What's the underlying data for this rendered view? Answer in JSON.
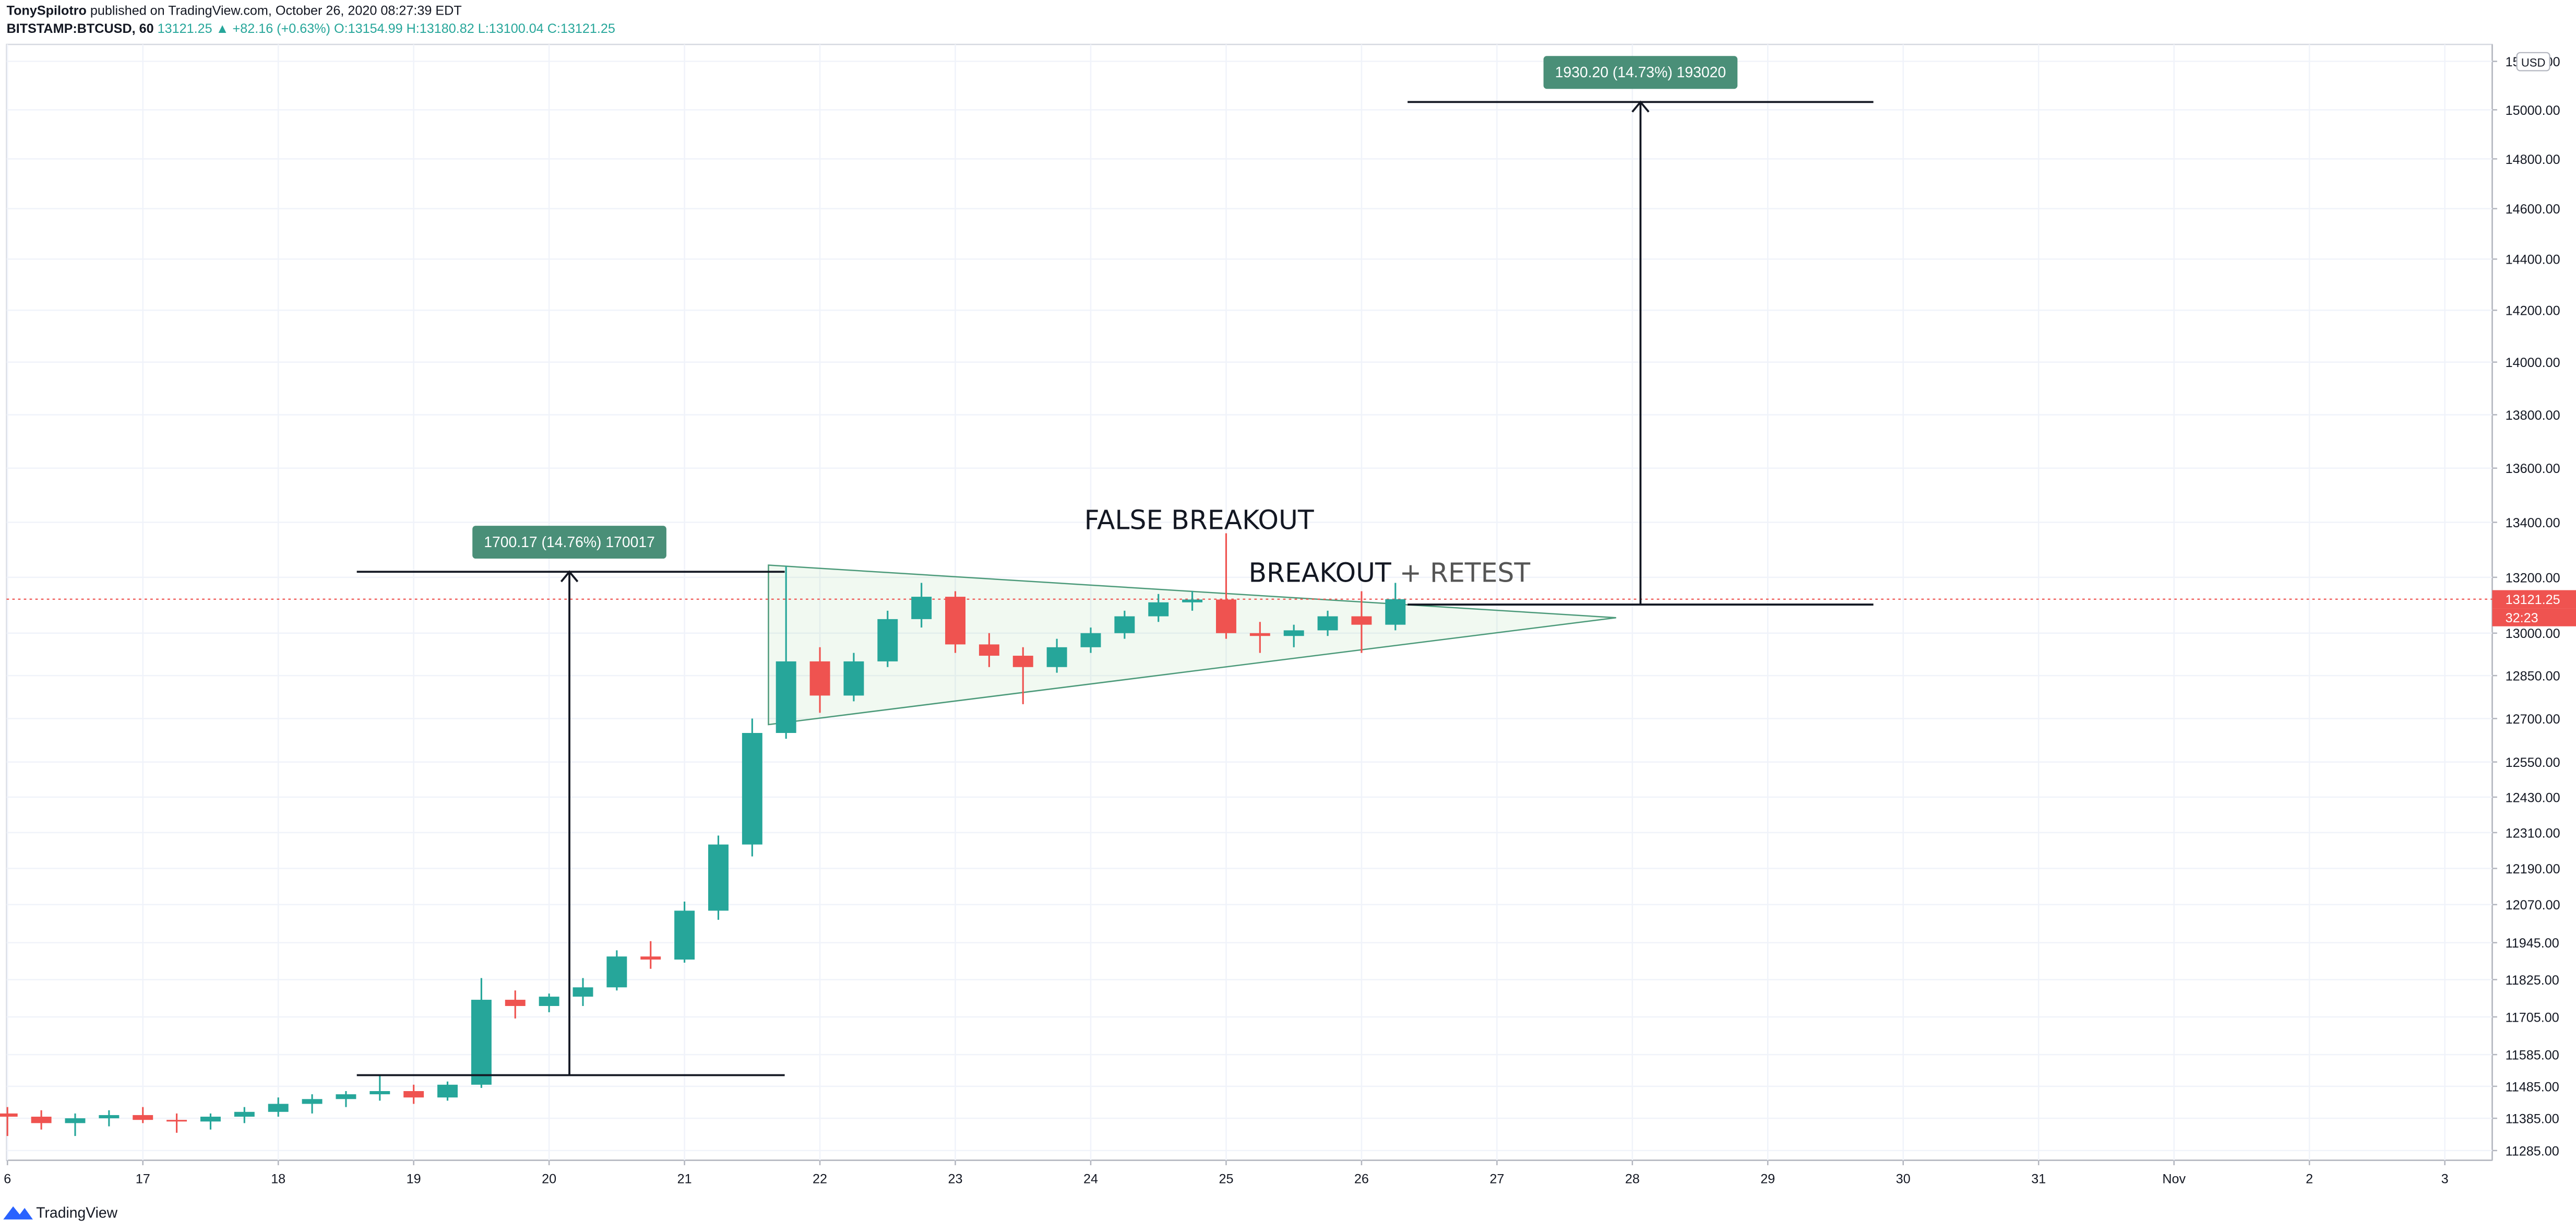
{
  "header": {
    "author": "TonySpilotro",
    "published": "published on TradingView.com, October 26, 2020 08:27:39 EDT",
    "symbol": "BITSTAMP:BTCUSD, 60",
    "quote": [
      "13121.25 ▲ +82.16 (+0.63%)",
      "O:13154.99",
      "H:13180.82",
      "L:13100.04",
      "C:13121.25"
    ]
  },
  "footer": {
    "brand": "TradingView"
  },
  "chart_data": {
    "type": "candlestick",
    "log_scale": true,
    "grid": true,
    "up_color": "#26a69a",
    "down_color": "#ef5350",
    "x": [
      16,
      16.25,
      16.5,
      16.75,
      17,
      17.25,
      17.5,
      17.75,
      18,
      18.25,
      18.5,
      18.75,
      19,
      19.25,
      19.5,
      19.75,
      20,
      20.25,
      20.5,
      20.75,
      21,
      21.25,
      21.5,
      21.75,
      22,
      22.25,
      22.5,
      22.75,
      23,
      23.25,
      23.5,
      23.75,
      24,
      24.25,
      24.5,
      24.75,
      25,
      25.25,
      25.5,
      25.75,
      26,
      26.25
    ],
    "open": [
      11400,
      11390,
      11370,
      11385,
      11395,
      11380,
      11375,
      11390,
      11405,
      11430,
      11445,
      11460,
      11470,
      11450,
      11490,
      11760,
      11740,
      11770,
      11800,
      11900,
      11890,
      12050,
      12270,
      12650,
      12900,
      12780,
      12900,
      13050,
      13130,
      12960,
      12920,
      12880,
      12950,
      13000,
      13060,
      13110,
      13120,
      13000,
      12990,
      13010,
      13060,
      13030
    ],
    "high": [
      11420,
      11410,
      11400,
      11410,
      11420,
      11400,
      11400,
      11420,
      11450,
      11460,
      11470,
      11520,
      11490,
      11500,
      11830,
      11790,
      11780,
      11830,
      11920,
      11950,
      12080,
      12300,
      12700,
      13240,
      12950,
      12930,
      13080,
      13180,
      13150,
      13000,
      12950,
      12980,
      13020,
      13080,
      13140,
      13150,
      13360,
      13040,
      13030,
      13080,
      13150,
      13180
    ],
    "low": [
      11330,
      11350,
      11330,
      11360,
      11370,
      11340,
      11350,
      11370,
      11390,
      11400,
      11420,
      11440,
      11430,
      11440,
      11480,
      11700,
      11720,
      11740,
      11790,
      11860,
      11880,
      12020,
      12230,
      12630,
      12720,
      12760,
      12880,
      13020,
      12930,
      12880,
      12750,
      12860,
      12930,
      12980,
      13040,
      13080,
      12980,
      12930,
      12950,
      12990,
      12930,
      13010
    ],
    "close": [
      11390,
      11370,
      11385,
      11395,
      11380,
      11375,
      11390,
      11405,
      11430,
      11445,
      11460,
      11470,
      11450,
      11490,
      11760,
      11740,
      11770,
      11800,
      11900,
      11890,
      12050,
      12270,
      12650,
      12900,
      12780,
      12900,
      13050,
      13130,
      12960,
      12920,
      12880,
      12950,
      13000,
      13060,
      13110,
      13120,
      13000,
      12990,
      13010,
      13060,
      13030,
      13121.25
    ],
    "xlim": [
      15.945,
      34.35
    ],
    "xticks": [
      {
        "value": 16,
        "label": "6"
      },
      17,
      18,
      19,
      20,
      21,
      22,
      23,
      24,
      25,
      26,
      27,
      28,
      29,
      30,
      31,
      {
        "value": 32,
        "label": "Nov"
      },
      {
        "value": 33,
        "label": "2"
      },
      {
        "value": 34,
        "label": "3"
      }
    ],
    "ylim": [
      11255,
      15250
    ],
    "yticks": [
      {
        "value": 11285,
        "label": "11285.00"
      },
      {
        "value": 11385,
        "label": "11385.00"
      },
      {
        "value": 11485,
        "label": "11485.00"
      },
      {
        "value": 11585,
        "label": "11585.00"
      },
      {
        "value": 11705,
        "label": "11705.00"
      },
      {
        "value": 11825,
        "label": "11825.00"
      },
      {
        "value": 11945,
        "label": "11945.00"
      },
      {
        "value": 12070,
        "label": "12070.00"
      },
      {
        "value": 12190,
        "label": "12190.00"
      },
      {
        "value": 12310,
        "label": "12310.00"
      },
      {
        "value": 12430,
        "label": "12430.00"
      },
      {
        "value": 12550,
        "label": "12550.00"
      },
      {
        "value": 12700,
        "label": "12700.00"
      },
      {
        "value": 12850,
        "label": "12850.00"
      },
      {
        "value": 13000,
        "label": "13000.00"
      },
      {
        "value": 13200,
        "label": "13200.00"
      },
      {
        "value": 13400,
        "label": "13400.00"
      },
      {
        "value": 13600,
        "label": "13600.00"
      },
      {
        "value": 13800,
        "label": "13800.00"
      },
      {
        "value": 14000,
        "label": "14000.00"
      },
      {
        "value": 14200,
        "label": "14200.00"
      },
      {
        "value": 14400,
        "label": "14400.00"
      },
      {
        "value": 14600,
        "label": "14600.00"
      },
      {
        "value": 14800,
        "label": "14800.00"
      },
      {
        "value": 15000,
        "label": "15000.00"
      },
      {
        "value": 15200,
        "label": "15200.00"
      }
    ],
    "last_price": 13121.25,
    "countdown": "32:23",
    "currency": "USD",
    "measures": [
      {
        "low": 11520,
        "high": 13220,
        "x_start": 18.58,
        "x_end": 21.74,
        "x_arrow": 20.15,
        "label": "1700.17 (14.76%) 170017"
      },
      {
        "low": 13102,
        "high": 15032,
        "x_start": 26.34,
        "x_end": 29.78,
        "x_arrow": 28.06,
        "label": "1930.20 (14.73%) 193020"
      }
    ],
    "triangle": {
      "x": [
        21.62,
        27.88,
        21.62
      ],
      "prices": [
        13244,
        13055,
        12679
      ]
    },
    "annotations": [
      "FALSE BREAKOUT",
      "BREAKOUT",
      "+ RETEST"
    ]
  }
}
